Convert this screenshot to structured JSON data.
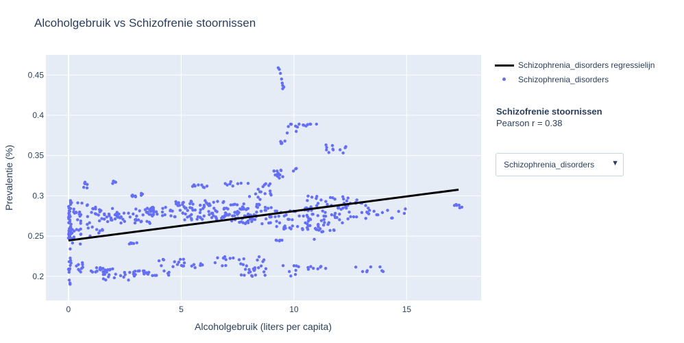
{
  "chart_title": "Alcoholgebruik vs Schizofrenie stoornissen",
  "legend": {
    "line_label": "Schizophrenia_disorders regressielijn",
    "marker_label": "Schizophrenia_disorders"
  },
  "annotation": {
    "title": "Schizofrenie stoornissen",
    "text": "Pearson r = 0.38"
  },
  "dropdown": {
    "selected": "Schizophrenia_disorders",
    "arrow_icon": "triangle-down-icon"
  },
  "colors": {
    "plot_bg": "#e5ecf6",
    "grid": "#ffffff",
    "marker": "#636efa",
    "regression_line": "#000000",
    "text": "#2a3f5f"
  },
  "chart_data": {
    "type": "scatter",
    "title": "Alcoholgebruik vs Schizofrenie stoornissen",
    "xlabel": "Alcoholgebruik (liters per capita)",
    "ylabel": "Prevalentie (%)",
    "xlim": [
      -1.0,
      18.3
    ],
    "ylim": [
      0.17,
      0.475
    ],
    "x_ticks": [
      0,
      5,
      10,
      15
    ],
    "x_tick_labels": [
      "0",
      "5",
      "10",
      "15"
    ],
    "y_ticks": [
      0.2,
      0.25,
      0.3,
      0.35,
      0.4,
      0.45
    ],
    "y_tick_labels": [
      "0.2",
      "0.25",
      "0.3",
      "0.35",
      "0.4",
      "0.45"
    ],
    "grid": true,
    "legend_position": "top-right",
    "series": [
      {
        "name": "Schizophrenia_disorders",
        "mode": "markers",
        "color": "#636efa",
        "clusters": [
          {
            "x": [
              0,
              0.1
            ],
            "y": [
              0.245,
              0.295
            ],
            "n": 45
          },
          {
            "x": [
              0,
              0.1
            ],
            "y": [
              0.188,
              0.235
            ],
            "n": 14
          },
          {
            "x": [
              0.1,
              0.6
            ],
            "y": [
              0.24,
              0.295
            ],
            "n": 30
          },
          {
            "x": [
              0.1,
              0.7
            ],
            "y": [
              0.205,
              0.22
            ],
            "n": 10
          },
          {
            "x": [
              0.6,
              0.85
            ],
            "y": [
              0.308,
              0.318
            ],
            "n": 6
          },
          {
            "x": [
              0.8,
              1.6
            ],
            "y": [
              0.25,
              0.29
            ],
            "n": 22
          },
          {
            "x": [
              1.0,
              2.0
            ],
            "y": [
              0.205,
              0.212
            ],
            "n": 18
          },
          {
            "x": [
              1.5,
              2.8
            ],
            "y": [
              0.195,
              0.205
            ],
            "n": 14
          },
          {
            "x": [
              1.3,
              3.8
            ],
            "y": [
              0.265,
              0.285
            ],
            "n": 55
          },
          {
            "x": [
              1.8,
              2.1
            ],
            "y": [
              0.315,
              0.32
            ],
            "n": 5
          },
          {
            "x": [
              2.8,
              3.3
            ],
            "y": [
              0.297,
              0.305
            ],
            "n": 8
          },
          {
            "x": [
              2.7,
              3.5
            ],
            "y": [
              0.24,
              0.242
            ],
            "n": 6
          },
          {
            "x": [
              2.8,
              4.5
            ],
            "y": [
              0.2,
              0.207
            ],
            "n": 22
          },
          {
            "x": [
              3.4,
              4.6
            ],
            "y": [
              0.272,
              0.287
            ],
            "n": 20
          },
          {
            "x": [
              4.0,
              5.2
            ],
            "y": [
              0.21,
              0.222
            ],
            "n": 14
          },
          {
            "x": [
              4.6,
              7.0
            ],
            "y": [
              0.27,
              0.295
            ],
            "n": 75
          },
          {
            "x": [
              5.5,
              6.2
            ],
            "y": [
              0.31,
              0.314
            ],
            "n": 8
          },
          {
            "x": [
              5.3,
              6.0
            ],
            "y": [
              0.21,
              0.216
            ],
            "n": 6
          },
          {
            "x": [
              6.2,
              7.8
            ],
            "y": [
              0.213,
              0.225
            ],
            "n": 12
          },
          {
            "x": [
              6.8,
              8.0
            ],
            "y": [
              0.312,
              0.318
            ],
            "n": 8
          },
          {
            "x": [
              7.0,
              9.2
            ],
            "y": [
              0.265,
              0.29
            ],
            "n": 75
          },
          {
            "x": [
              7.5,
              8.8
            ],
            "y": [
              0.2,
              0.228
            ],
            "n": 25
          },
          {
            "x": [
              8.0,
              9.0
            ],
            "y": [
              0.295,
              0.315
            ],
            "n": 16
          },
          {
            "x": [
              9.0,
              9.6
            ],
            "y": [
              0.32,
              0.332
            ],
            "n": 10
          },
          {
            "x": [
              9.2,
              9.5
            ],
            "y": [
              0.242,
              0.245
            ],
            "n": 5
          },
          {
            "x": [
              9.2,
              10.8
            ],
            "y": [
              0.258,
              0.285
            ],
            "n": 40
          },
          {
            "x": [
              9.5,
              10.4
            ],
            "y": [
              0.2,
              0.215
            ],
            "n": 8
          },
          {
            "x": [
              9.9,
              10.2
            ],
            "y": [
              0.33,
              0.334
            ],
            "n": 3
          },
          {
            "x": [
              9.8,
              10.9
            ],
            "y": [
              0.383,
              0.39
            ],
            "n": 10
          },
          {
            "x": [
              9.2,
              9.5
            ],
            "y": [
              0.364,
              0.368
            ],
            "n": 4
          },
          {
            "x": [
              10.5,
              12.5
            ],
            "y": [
              0.255,
              0.3
            ],
            "n": 75
          },
          {
            "x": [
              11.4,
              12.3
            ],
            "y": [
              0.353,
              0.364
            ],
            "n": 10
          },
          {
            "x": [
              10.5,
              11.5
            ],
            "y": [
              0.208,
              0.213
            ],
            "n": 8
          },
          {
            "x": [
              12.5,
              13.5
            ],
            "y": [
              0.27,
              0.298
            ],
            "n": 16
          },
          {
            "x": [
              12.5,
              14.0
            ],
            "y": [
              0.205,
              0.212
            ],
            "n": 8
          },
          {
            "x": [
              13.5,
              15.0
            ],
            "y": [
              0.272,
              0.286
            ],
            "n": 10
          },
          {
            "x": [
              16.8,
              17.5
            ],
            "y": [
              0.285,
              0.29
            ],
            "n": 6
          }
        ],
        "points": [
          [
            9.3,
            0.459
          ],
          [
            9.35,
            0.457
          ],
          [
            9.4,
            0.452
          ],
          [
            9.45,
            0.445
          ],
          [
            9.48,
            0.44
          ],
          [
            9.5,
            0.437
          ],
          [
            9.55,
            0.435
          ],
          [
            9.5,
            0.433
          ],
          [
            9.6,
            0.368
          ],
          [
            9.7,
            0.378
          ],
          [
            9.75,
            0.386
          ],
          [
            9.85,
            0.389
          ],
          [
            11.0,
            0.389
          ],
          [
            10.1,
            0.38
          ],
          [
            9.3,
            0.328
          ],
          [
            9.35,
            0.322
          ],
          [
            10.9,
            0.246
          ],
          [
            12.3,
            0.361
          ]
        ]
      },
      {
        "name": "Schizophrenia_disorders regressielijn",
        "mode": "lines",
        "color": "#000000",
        "x": [
          0,
          17.3
        ],
        "y": [
          0.2445,
          0.3076
        ]
      }
    ]
  }
}
